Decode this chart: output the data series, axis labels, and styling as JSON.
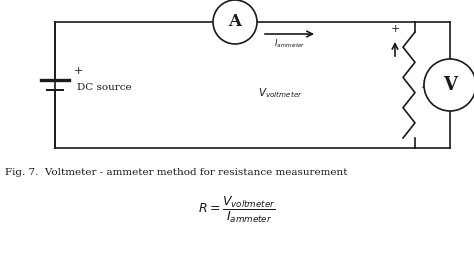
{
  "fig_width": 4.74,
  "fig_height": 2.66,
  "dpi": 100,
  "bg_color": "#ffffff",
  "circuit_color": "#1a1a1a",
  "line_width": 1.2,
  "caption": "Fig. 7.  Voltmeter - ammeter method for resistance measurement",
  "ammeter_label": "A",
  "voltmeter_label": "V",
  "resistance_label": "R",
  "dc_label": "DC source",
  "plus_dc": "+",
  "plus_R": "+"
}
